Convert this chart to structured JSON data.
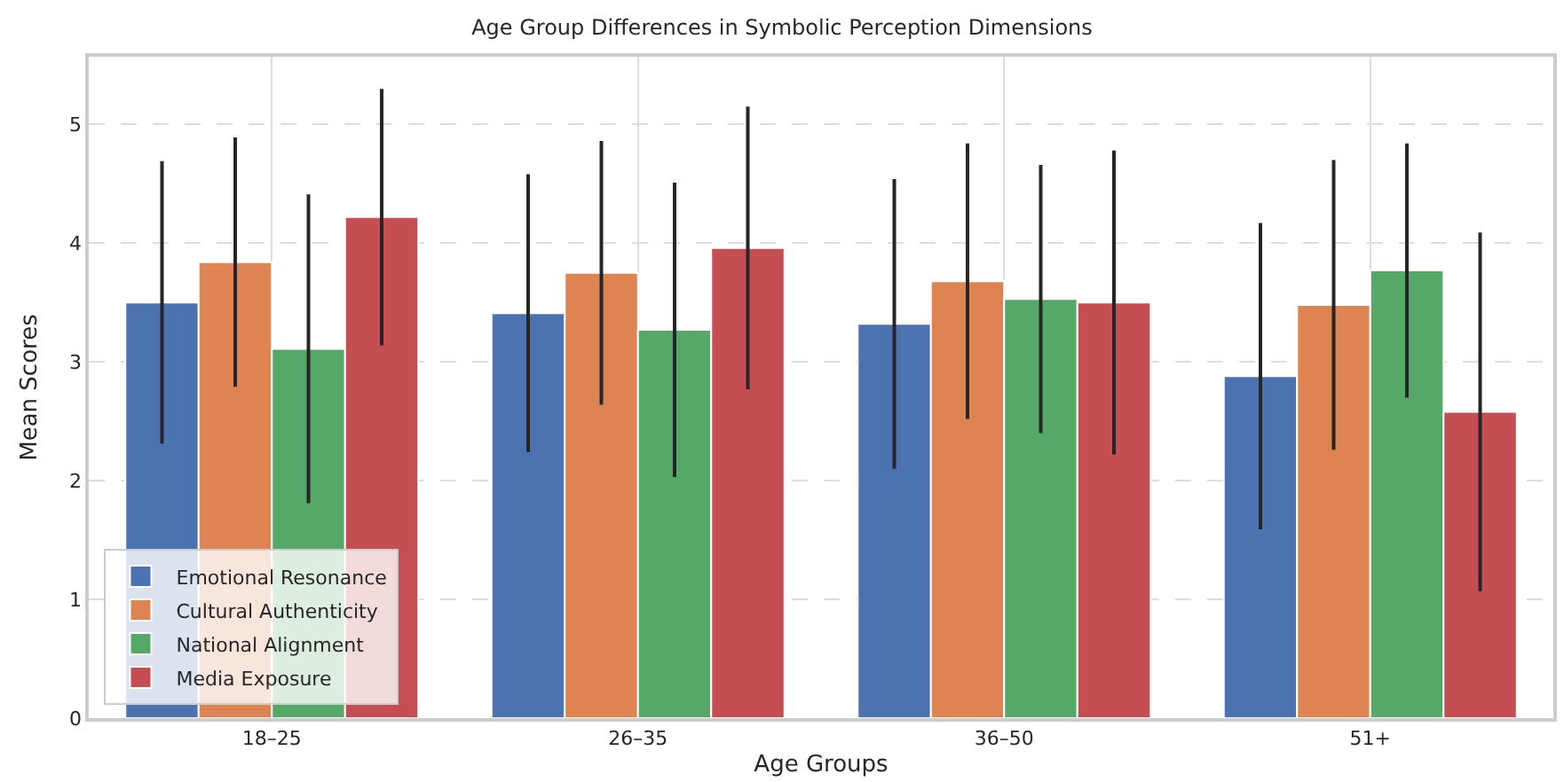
{
  "chart_data": {
    "type": "bar",
    "title": "Age Group Differences in Symbolic Perception Dimensions",
    "xlabel": "Age Groups",
    "ylabel": "Mean Scores",
    "categories": [
      "18–25",
      "26–35",
      "36–50",
      "51+"
    ],
    "series": [
      {
        "name": "Emotional Resonance",
        "color": "#4c72b0",
        "values": [
          3.5,
          3.41,
          3.32,
          2.88
        ],
        "errors": [
          1.19,
          1.17,
          1.22,
          1.29
        ]
      },
      {
        "name": "Cultural Authenticity",
        "color": "#dd8452",
        "values": [
          3.84,
          3.75,
          3.68,
          3.48
        ],
        "errors": [
          1.05,
          1.11,
          1.16,
          1.22
        ]
      },
      {
        "name": "National Alignment",
        "color": "#55a868",
        "values": [
          3.11,
          3.27,
          3.53,
          3.77
        ],
        "errors": [
          1.3,
          1.24,
          1.13,
          1.07
        ]
      },
      {
        "name": "Media Exposure",
        "color": "#c44e52",
        "values": [
          4.22,
          3.96,
          3.5,
          2.58
        ],
        "errors": [
          1.08,
          1.19,
          1.28,
          1.51
        ]
      }
    ],
    "ylim": [
      0,
      5.57
    ],
    "yticks": [
      0,
      1,
      2,
      3,
      4,
      5
    ],
    "grid": true,
    "legend": "bottom left"
  }
}
